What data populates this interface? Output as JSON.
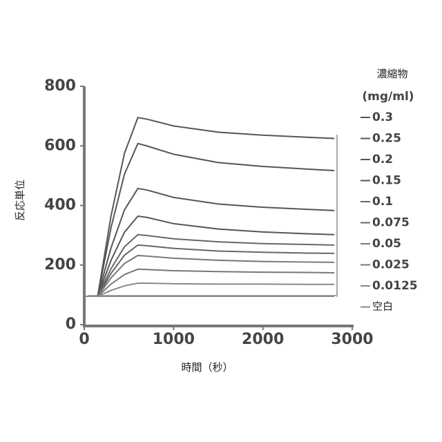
{
  "chart_data": {
    "type": "line",
    "y_label": "反応単位",
    "x_label": "時間（秒）",
    "legend_title": "濃縮物",
    "legend_subtitle": "(mg/ml)",
    "x": [
      0,
      150,
      300,
      450,
      600,
      700,
      1000,
      1500,
      2000,
      2500,
      2800
    ],
    "xlim": [
      0,
      3000
    ],
    "xticks": [
      0,
      1000,
      2000,
      3000
    ],
    "ylim": [
      0,
      800
    ],
    "yticks": [
      0,
      200,
      400,
      600,
      800
    ],
    "series": [
      {
        "name": "0.3",
        "color": "#555555",
        "values": [
          95,
          95,
          365,
          575,
          695,
          690,
          667,
          646,
          636,
          629,
          625
        ]
      },
      {
        "name": "0.25",
        "color": "#555555",
        "values": [
          95,
          95,
          326,
          505,
          608,
          600,
          572,
          544,
          531,
          522,
          517
        ]
      },
      {
        "name": "0.2",
        "color": "#555555",
        "values": [
          95,
          95,
          258,
          385,
          457,
          452,
          427,
          405,
          394,
          387,
          383
        ]
      },
      {
        "name": "0.15",
        "color": "#555555",
        "values": [
          95,
          95,
          216,
          310,
          364,
          360,
          339,
          321,
          311,
          305,
          302
        ]
      },
      {
        "name": "0.1",
        "color": "#666666",
        "values": [
          95,
          95,
          188,
          261,
          302,
          299,
          288,
          278,
          272,
          269,
          267
        ]
      },
      {
        "name": "0.075",
        "color": "#666666",
        "values": [
          95,
          95,
          172,
          233,
          267,
          265,
          256,
          247,
          243,
          240,
          239
        ]
      },
      {
        "name": "0.05",
        "color": "#777777",
        "values": [
          95,
          95,
          157,
          205,
          232,
          230,
          223,
          216,
          212,
          210,
          209
        ]
      },
      {
        "name": "0.025",
        "color": "#777777",
        "values": [
          95,
          95,
          136,
          168,
          186,
          185,
          181,
          178,
          176,
          175,
          174
        ]
      },
      {
        "name": "0.0125",
        "color": "#888888",
        "values": [
          95,
          95,
          115,
          130,
          139,
          139,
          137,
          136,
          136,
          135,
          135
        ]
      },
      {
        "name": "空白",
        "color": "#888888",
        "values": [
          95,
          95,
          95,
          95,
          95,
          95,
          95,
          95,
          95,
          95,
          95
        ]
      }
    ]
  }
}
